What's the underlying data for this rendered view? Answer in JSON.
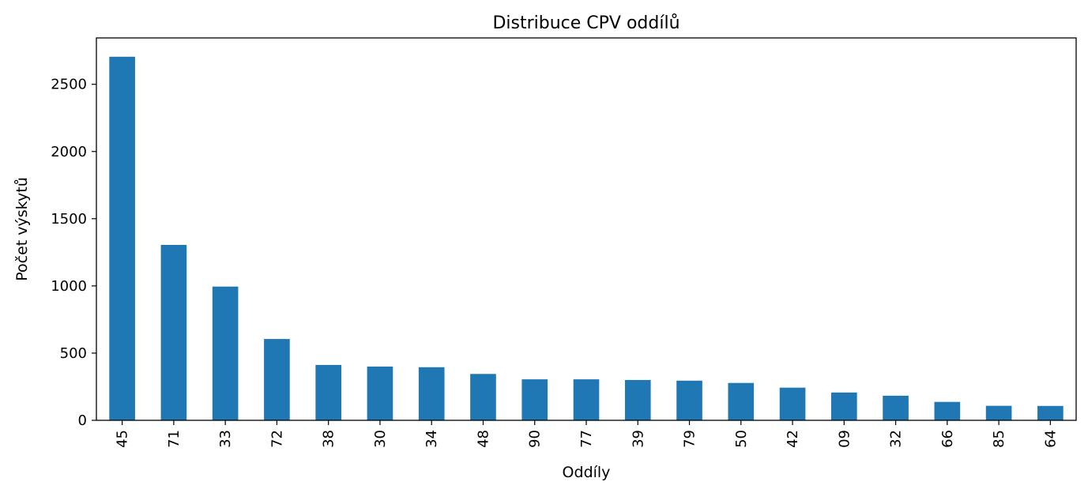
{
  "chart_data": {
    "type": "bar",
    "title": "Distribuce CPV oddílů",
    "xlabel": "Oddíly",
    "ylabel": "Počet výskytů",
    "categories": [
      "45",
      "71",
      "33",
      "72",
      "38",
      "30",
      "34",
      "48",
      "90",
      "77",
      "39",
      "79",
      "50",
      "42",
      "09",
      "32",
      "66",
      "85",
      "64"
    ],
    "values": [
      2705,
      1305,
      995,
      605,
      412,
      400,
      395,
      345,
      305,
      305,
      300,
      295,
      278,
      243,
      207,
      183,
      137,
      108,
      107
    ],
    "ylim": [
      0,
      2845
    ],
    "yticks": [
      0,
      500,
      1000,
      1500,
      2000,
      2500
    ],
    "grid": false,
    "legend": "none",
    "bar_color": "#1f77b4"
  }
}
